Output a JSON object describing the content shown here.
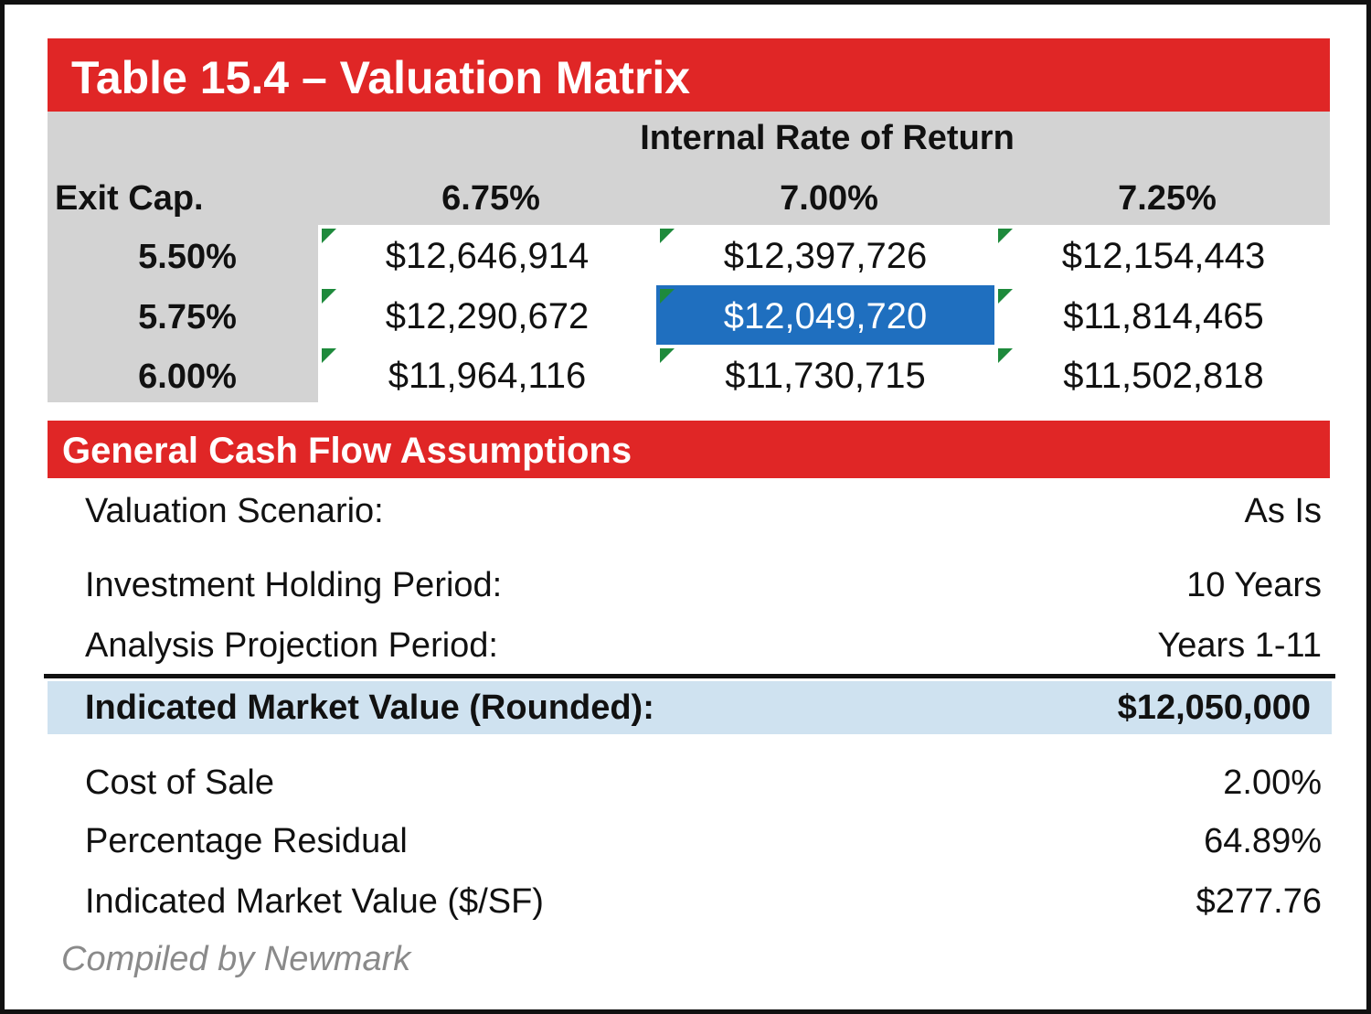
{
  "title": "Table 15.4 – Valuation Matrix",
  "matrix": {
    "irr_header": "Internal Rate of Return",
    "row_header": "Exit Cap.",
    "columns": [
      "6.75%",
      "7.00%",
      "7.25%"
    ],
    "rows": [
      {
        "cap": "5.50%",
        "values": [
          "$12,646,914",
          "$12,397,726",
          "$12,154,443"
        ]
      },
      {
        "cap": "5.75%",
        "values": [
          "$12,290,672",
          "$12,049,720",
          "$11,814,465"
        ]
      },
      {
        "cap": "6.00%",
        "values": [
          "$11,964,116",
          "$11,730,715",
          "$11,502,818"
        ]
      }
    ],
    "highlight_color": "#1f6fbf"
  },
  "assumptions": {
    "title": "General Cash Flow Assumptions",
    "items": [
      {
        "label": "Valuation Scenario:",
        "value": "As Is"
      },
      {
        "label": "Investment Holding Period:",
        "value": "10 Years"
      },
      {
        "label": "Analysis Projection Period:",
        "value": "Years 1-11"
      }
    ],
    "indicated": {
      "label": "Indicated Market Value (Rounded):",
      "value": "$12,050,000"
    },
    "extra": [
      {
        "label": "Cost of Sale",
        "value": "2.00%"
      },
      {
        "label": "Percentage Residual",
        "value": "64.89%"
      },
      {
        "label": "Indicated Market Value ($/SF)",
        "value": "$277.76"
      }
    ]
  },
  "source": "Compiled by Newmark",
  "colors": {
    "red": "#e02626",
    "gray": "#d3d3d3",
    "band": "#cfe2f0"
  }
}
